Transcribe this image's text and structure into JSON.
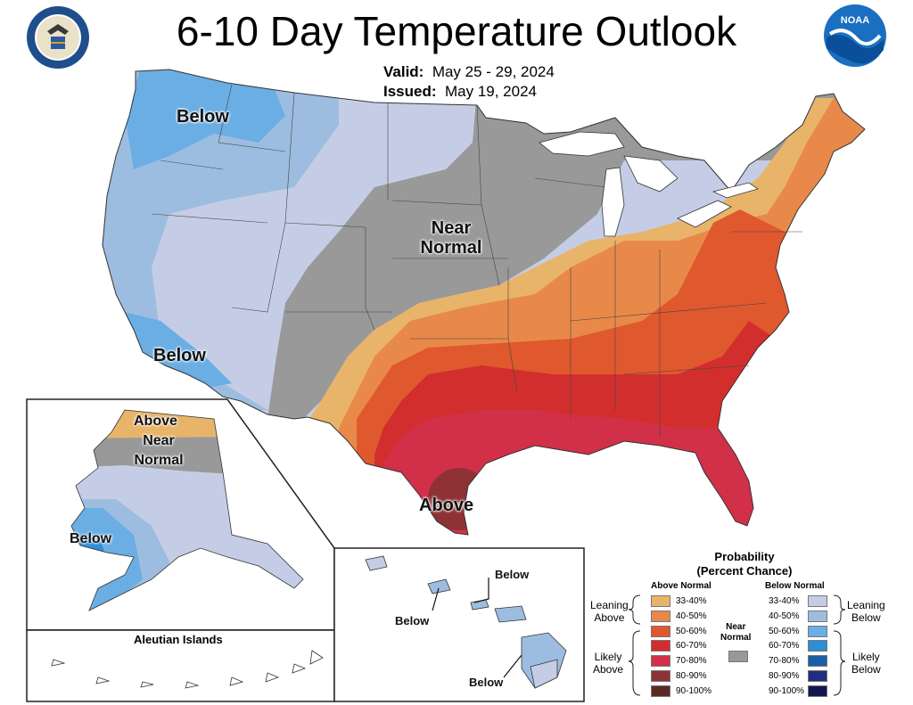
{
  "title": "6-10 Day Temperature Outlook",
  "valid_label": "Valid:",
  "valid_value": "May 25 - 29, 2024",
  "issued_label": "Issued:",
  "issued_value": "May 19, 2024",
  "logos": {
    "left": "Department of Commerce seal",
    "right": "NOAA"
  },
  "map_labels": {
    "below_nw": "Below",
    "below_sw": "Below",
    "near_normal_1": "Near",
    "near_normal_2": "Normal",
    "above_tx": "Above",
    "ak_above": "Above",
    "ak_near_1": "Near",
    "ak_near_2": "Normal",
    "ak_below": "Below",
    "aleutian": "Aleutian Islands",
    "hi_below_1": "Below",
    "hi_below_2": "Below",
    "hi_below_3": "Below"
  },
  "legend": {
    "title_1": "Probability",
    "title_2": "(Percent Chance)",
    "above_head": "Above Normal",
    "below_head": "Below Normal",
    "near_head_1": "Near",
    "near_head_2": "Normal",
    "leaning_above_1": "Leaning",
    "leaning_above_2": "Above",
    "likely_above_1": "Likely",
    "likely_above_2": "Above",
    "leaning_below_1": "Leaning",
    "leaning_below_2": "Below",
    "likely_below_1": "Likely",
    "likely_below_2": "Below",
    "near_color": "#999999",
    "above": [
      {
        "label": "33-40%",
        "color": "#E8B46A"
      },
      {
        "label": "40-50%",
        "color": "#E8894A"
      },
      {
        "label": "50-60%",
        "color": "#E0582E"
      },
      {
        "label": "60-70%",
        "color": "#D22E2E"
      },
      {
        "label": "70-80%",
        "color": "#D23048"
      },
      {
        "label": "80-90%",
        "color": "#8E3236"
      },
      {
        "label": "90-100%",
        "color": "#5A2A22"
      }
    ],
    "below": [
      {
        "label": "33-40%",
        "color": "#C5CDE6"
      },
      {
        "label": "40-50%",
        "color": "#9DBDE0"
      },
      {
        "label": "50-60%",
        "color": "#6AAEE4"
      },
      {
        "label": "60-70%",
        "color": "#2E8ED6"
      },
      {
        "label": "70-80%",
        "color": "#1B5FA6"
      },
      {
        "label": "80-90%",
        "color": "#1E2E80"
      },
      {
        "label": "90-100%",
        "color": "#151650"
      }
    ]
  }
}
